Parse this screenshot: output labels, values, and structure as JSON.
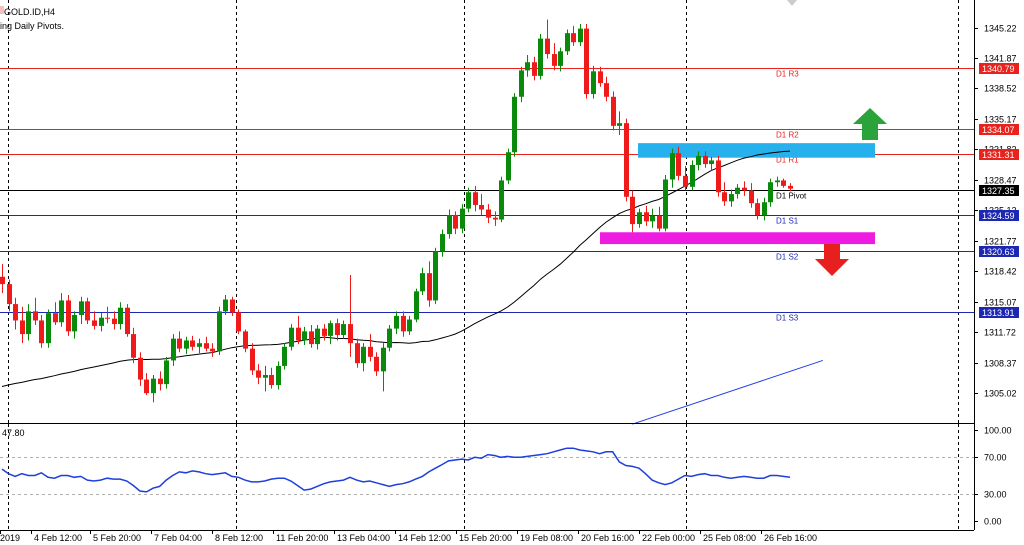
{
  "header": {
    "symbol": "GOLD.ID,H4",
    "indicator": "ing Daily Pivots."
  },
  "osc_header": "47.80",
  "colors": {
    "bull": "#0a8a0a",
    "bear": "#ef1b1b",
    "ma": "#000000",
    "ma_blue": "#1f3fdc",
    "resistance_line": "#e8221c",
    "support_line": "#1c28b4",
    "osc_line": "#1f3fdc",
    "supply_zone": "#27b1ec",
    "demand_zone": "#ee1be0",
    "arrow_up": "#2aa33a",
    "arrow_down": "#e81f1f"
  },
  "chart_data": [
    {
      "type": "candlestick",
      "title": "GOLD.ID,H4",
      "y_ticks": [
        "1345.22",
        "1341.87",
        "1338.52",
        "1335.17",
        "1331.82",
        "1328.47",
        "1325.12",
        "1321.77",
        "1318.42",
        "1315.07",
        "1311.72",
        "1308.37",
        "1305.02"
      ],
      "ylim": [
        1301.8,
        1348.5
      ],
      "x_ticks": [
        "2019",
        "4 Feb 12:00",
        "5 Feb 20:00",
        "7 Feb 04:00",
        "8 Feb 12:00",
        "11 Feb 20:00",
        "13 Feb 04:00",
        "14 Feb 12:00",
        "15 Feb 20:00",
        "19 Feb 08:00",
        "20 Feb 16:00",
        "22 Feb 00:00",
        "25 Feb 08:00",
        "26 Feb 16:00"
      ],
      "levels": [
        {
          "name": "D1 R3",
          "value": 1340.79,
          "kind": "resistance"
        },
        {
          "name": "D1 R2",
          "value": 1334.07,
          "kind": "resistance"
        },
        {
          "name": "D1 R1",
          "value": 1331.31,
          "kind": "resistance"
        },
        {
          "name": "D1 Pivot",
          "value": 1327.35,
          "kind": "pivot"
        },
        {
          "name": "D1 S1",
          "value": 1324.59,
          "kind": "support"
        },
        {
          "name": "D1 S2",
          "value": 1320.63,
          "kind": "support"
        },
        {
          "name": "D1 S3",
          "value": 1313.91,
          "kind": "support"
        }
      ],
      "zones": [
        {
          "kind": "supply",
          "from": 1330.9,
          "to": 1332.5
        },
        {
          "kind": "demand",
          "from": 1321.4,
          "to": 1322.7
        }
      ],
      "candles": [
        [
          1317.8,
          1319.2,
          1316.0,
          1317.0
        ],
        [
          1317.0,
          1317.5,
          1314.0,
          1314.8
        ],
        [
          1314.8,
          1315.5,
          1312.0,
          1313.0
        ],
        [
          1313.0,
          1314.5,
          1310.5,
          1311.5
        ],
        [
          1311.5,
          1314.8,
          1310.8,
          1314.0
        ],
        [
          1314.0,
          1315.5,
          1312.5,
          1313.0
        ],
        [
          1313.0,
          1313.6,
          1310.0,
          1310.5
        ],
        [
          1310.5,
          1314.2,
          1310.0,
          1313.8
        ],
        [
          1313.8,
          1315.0,
          1312.5,
          1312.8
        ],
        [
          1312.8,
          1316.0,
          1312.3,
          1315.2
        ],
        [
          1315.2,
          1315.8,
          1311.3,
          1311.8
        ],
        [
          1311.8,
          1314.0,
          1311.0,
          1313.6
        ],
        [
          1313.6,
          1315.6,
          1312.6,
          1315.1
        ],
        [
          1315.1,
          1315.5,
          1312.6,
          1313.0
        ],
        [
          1313.0,
          1314.0,
          1312.0,
          1312.4
        ],
        [
          1312.4,
          1313.8,
          1311.8,
          1313.3
        ],
        [
          1313.3,
          1314.5,
          1312.7,
          1313.2
        ],
        [
          1313.2,
          1314.0,
          1312.0,
          1312.6
        ],
        [
          1312.6,
          1315.0,
          1312.0,
          1314.4
        ],
        [
          1314.4,
          1314.8,
          1311.2,
          1311.5
        ],
        [
          1311.5,
          1312.2,
          1308.3,
          1308.9
        ],
        [
          1308.9,
          1309.5,
          1305.8,
          1306.5
        ],
        [
          1306.5,
          1307.2,
          1304.8,
          1305.0
        ],
        [
          1305.0,
          1307.0,
          1304.0,
          1306.6
        ],
        [
          1306.6,
          1307.4,
          1305.3,
          1306.0
        ],
        [
          1306.0,
          1309.0,
          1305.5,
          1308.6
        ],
        [
          1308.6,
          1311.5,
          1308.0,
          1311.0
        ],
        [
          1311.0,
          1311.8,
          1309.5,
          1309.9
        ],
        [
          1309.9,
          1311.2,
          1309.3,
          1310.8
        ],
        [
          1310.8,
          1311.3,
          1309.7,
          1310.1
        ],
        [
          1310.1,
          1311.0,
          1309.4,
          1310.5
        ],
        [
          1310.5,
          1311.2,
          1309.6,
          1309.9
        ],
        [
          1309.9,
          1310.5,
          1309.0,
          1309.6
        ],
        [
          1309.6,
          1314.5,
          1309.2,
          1314.0
        ],
        [
          1314.0,
          1315.8,
          1313.6,
          1315.3
        ],
        [
          1315.3,
          1315.6,
          1313.5,
          1313.9
        ],
        [
          1313.9,
          1314.2,
          1311.5,
          1311.8
        ],
        [
          1311.8,
          1312.0,
          1309.5,
          1309.9
        ],
        [
          1309.9,
          1310.5,
          1307.0,
          1307.5
        ],
        [
          1307.5,
          1308.2,
          1306.0,
          1306.7
        ],
        [
          1306.7,
          1308.0,
          1305.2,
          1307.0
        ],
        [
          1307.0,
          1307.8,
          1305.5,
          1305.9
        ],
        [
          1305.9,
          1308.5,
          1305.4,
          1308.0
        ],
        [
          1308.0,
          1310.5,
          1307.6,
          1310.1
        ],
        [
          1310.1,
          1312.6,
          1309.7,
          1312.2
        ],
        [
          1312.2,
          1313.5,
          1310.4,
          1310.8
        ],
        [
          1310.8,
          1312.3,
          1310.3,
          1311.8
        ],
        [
          1311.8,
          1312.5,
          1310.0,
          1310.4
        ],
        [
          1310.4,
          1312.5,
          1309.8,
          1312.1
        ],
        [
          1312.1,
          1312.6,
          1310.8,
          1311.3
        ],
        [
          1311.3,
          1313.0,
          1310.4,
          1312.7
        ],
        [
          1312.7,
          1313.2,
          1310.8,
          1311.4
        ],
        [
          1311.4,
          1313.0,
          1311.0,
          1312.6
        ],
        [
          1312.6,
          1318.0,
          1309.0,
          1310.5
        ],
        [
          1310.5,
          1311.0,
          1307.8,
          1308.3
        ],
        [
          1308.3,
          1310.5,
          1307.4,
          1310.1
        ],
        [
          1310.1,
          1311.5,
          1308.5,
          1309.0
        ],
        [
          1309.0,
          1309.5,
          1306.9,
          1307.4
        ],
        [
          1307.4,
          1310.5,
          1305.2,
          1310.0
        ],
        [
          1310.0,
          1312.5,
          1309.6,
          1312.1
        ],
        [
          1312.1,
          1314.0,
          1311.5,
          1313.5
        ],
        [
          1313.5,
          1314.0,
          1311.2,
          1311.8
        ],
        [
          1311.8,
          1313.5,
          1311.4,
          1313.1
        ],
        [
          1313.1,
          1316.5,
          1312.8,
          1316.2
        ],
        [
          1316.2,
          1318.8,
          1315.8,
          1318.2
        ],
        [
          1318.2,
          1319.5,
          1314.5,
          1315.2
        ],
        [
          1315.2,
          1321.0,
          1314.8,
          1320.6
        ],
        [
          1320.6,
          1323.0,
          1320.0,
          1322.5
        ],
        [
          1322.5,
          1325.2,
          1322.0,
          1324.6
        ],
        [
          1324.6,
          1325.0,
          1322.5,
          1323.1
        ],
        [
          1323.1,
          1325.8,
          1322.6,
          1325.3
        ],
        [
          1325.3,
          1327.6,
          1324.9,
          1327.1
        ],
        [
          1327.1,
          1327.8,
          1325.0,
          1325.7
        ],
        [
          1325.7,
          1326.9,
          1324.6,
          1325.2
        ],
        [
          1325.2,
          1325.8,
          1323.7,
          1324.3
        ],
        [
          1324.3,
          1325.0,
          1323.4,
          1324.1
        ],
        [
          1324.1,
          1328.8,
          1323.8,
          1328.4
        ],
        [
          1328.4,
          1331.9,
          1328.0,
          1331.5
        ],
        [
          1331.5,
          1338.0,
          1331.0,
          1337.6
        ],
        [
          1337.6,
          1340.9,
          1337.0,
          1340.5
        ],
        [
          1340.5,
          1342.2,
          1339.8,
          1341.4
        ],
        [
          1341.4,
          1342.0,
          1339.4,
          1339.9
        ],
        [
          1339.9,
          1344.5,
          1339.5,
          1344.0
        ],
        [
          1344.0,
          1346.1,
          1341.8,
          1342.3
        ],
        [
          1342.3,
          1343.5,
          1340.5,
          1341.0
        ],
        [
          1341.0,
          1343.0,
          1340.4,
          1342.6
        ],
        [
          1342.6,
          1345.0,
          1342.2,
          1344.6
        ],
        [
          1344.6,
          1345.4,
          1343.2,
          1343.6
        ],
        [
          1343.6,
          1345.6,
          1343.2,
          1345.1
        ],
        [
          1345.1,
          1345.6,
          1337.4,
          1337.9
        ],
        [
          1337.9,
          1341.0,
          1337.4,
          1340.4
        ],
        [
          1340.4,
          1340.9,
          1338.7,
          1339.1
        ],
        [
          1339.1,
          1339.8,
          1337.1,
          1337.6
        ],
        [
          1337.6,
          1338.2,
          1333.9,
          1334.4
        ],
        [
          1334.4,
          1336.0,
          1333.4,
          1334.7
        ],
        [
          1334.7,
          1335.2,
          1326.1,
          1326.6
        ],
        [
          1326.6,
          1327.3,
          1322.7,
          1323.6
        ],
        [
          1323.6,
          1325.3,
          1323.2,
          1324.9
        ],
        [
          1324.9,
          1325.6,
          1323.4,
          1323.9
        ],
        [
          1323.9,
          1325.3,
          1323.2,
          1324.5
        ],
        [
          1324.5,
          1325.5,
          1322.8,
          1323.1
        ],
        [
          1323.1,
          1329.0,
          1322.8,
          1328.5
        ],
        [
          1328.5,
          1331.9,
          1327.6,
          1331.4
        ],
        [
          1331.4,
          1332.1,
          1328.4,
          1328.9
        ],
        [
          1328.9,
          1330.0,
          1327.3,
          1327.7
        ],
        [
          1327.7,
          1330.6,
          1327.3,
          1330.1
        ],
        [
          1330.1,
          1331.6,
          1329.5,
          1331.1
        ],
        [
          1331.1,
          1331.6,
          1329.8,
          1330.2
        ],
        [
          1330.2,
          1331.0,
          1329.5,
          1330.6
        ],
        [
          1330.6,
          1331.1,
          1326.6,
          1327.1
        ],
        [
          1327.1,
          1328.2,
          1325.6,
          1326.1
        ],
        [
          1326.1,
          1327.4,
          1325.5,
          1326.9
        ],
        [
          1326.9,
          1328.0,
          1326.4,
          1327.6
        ],
        [
          1327.6,
          1328.3,
          1326.7,
          1327.3
        ],
        [
          1327.3,
          1328.1,
          1325.4,
          1325.9
        ],
        [
          1325.9,
          1326.4,
          1324.1,
          1324.6
        ],
        [
          1324.6,
          1326.5,
          1324.0,
          1326.0
        ],
        [
          1326.0,
          1328.6,
          1325.5,
          1328.2
        ],
        [
          1328.2,
          1328.8,
          1327.7,
          1328.4
        ],
        [
          1328.4,
          1328.6,
          1327.6,
          1327.8
        ],
        [
          1327.8,
          1328.1,
          1327.2,
          1327.5
        ]
      ],
      "moving_average": {
        "kind": "MA",
        "values_start": 1305.5,
        "values_end": 1327.0
      },
      "moving_average_blue": {
        "from": [
          96,
          1301.6
        ],
        "to": [
          125,
          1308.6
        ]
      }
    },
    {
      "type": "line",
      "title": "47.80",
      "y_ticks": [
        "100.00",
        "70.00",
        "30.00",
        "0.00"
      ],
      "ylim": [
        0,
        100
      ],
      "series": [
        {
          "values": [
            57,
            52,
            49,
            52,
            50,
            50,
            53,
            48,
            47,
            50,
            50,
            48,
            49,
            45,
            44,
            45,
            47,
            46,
            46,
            44,
            39,
            33,
            32,
            36,
            38,
            45,
            50,
            54,
            53,
            55,
            54,
            52,
            51,
            52,
            53,
            49,
            48,
            45,
            43,
            43,
            44,
            46,
            47,
            47,
            44,
            39,
            34,
            35,
            38,
            41,
            43,
            44,
            45,
            48,
            45,
            43,
            44,
            42,
            40,
            38,
            40,
            41,
            43,
            46,
            49,
            54,
            58,
            62,
            66,
            67,
            68,
            67,
            70,
            69,
            73,
            72,
            70,
            71,
            70,
            70,
            71,
            72,
            73,
            74,
            76,
            78,
            80,
            80,
            78,
            77,
            76,
            74,
            76,
            76,
            65,
            61,
            60,
            58,
            52,
            45,
            42,
            40,
            42,
            46,
            50,
            49,
            51,
            52,
            50,
            50,
            48,
            47,
            48,
            49,
            48,
            47,
            47,
            50,
            50,
            49,
            48
          ]
        }
      ]
    }
  ]
}
